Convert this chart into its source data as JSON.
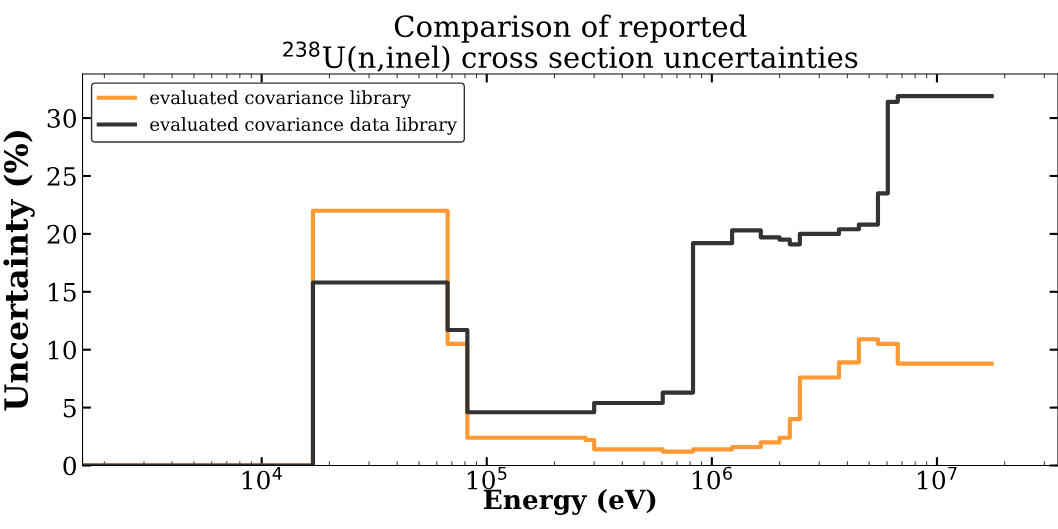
{
  "chart_data": {
    "type": "step",
    "title": "Comparison of reported\n$^{238}$U(n,inel) cross section uncertainties",
    "xlabel": "Energy (eV)",
    "ylabel": "Uncertainty (%)",
    "series": [
      {
        "name": "evaluated covariance library",
        "color": "#ff9933",
        "x": [
          1600,
          16900,
          67000,
          82000,
          275000,
          300000,
          605000,
          825000,
          1230000,
          1650000,
          2000000,
          2220000,
          2460000,
          3670000,
          4500000,
          5470000,
          6700000,
          17500000
        ],
        "values": [
          0,
          22.0,
          10.5,
          2.4,
          2.2,
          1.4,
          1.2,
          1.4,
          1.6,
          2.0,
          2.4,
          4.0,
          7.6,
          8.9,
          10.9,
          10.5,
          8.8,
          8.8
        ]
      },
      {
        "name": "evaluated covariance data library",
        "color": "#333333",
        "x": [
          1600,
          16900,
          67000,
          82000,
          300000,
          605000,
          825000,
          1230000,
          1650000,
          2000000,
          2220000,
          2460000,
          3670000,
          4500000,
          5470000,
          6050000,
          6700000,
          17500000
        ],
        "values": [
          0,
          15.8,
          11.7,
          4.6,
          5.4,
          6.3,
          19.2,
          20.3,
          19.7,
          19.5,
          19.1,
          20.0,
          20.4,
          20.8,
          23.5,
          31.4,
          31.9,
          31.9
        ]
      }
    ],
    "log": "x",
    "xlim": [
      1600,
      34500000
    ],
    "xticks": [
      {
        "value": 10000,
        "label": "10$^{4}$"
      },
      {
        "value": 100000,
        "label": "10$^{5}$"
      },
      {
        "value": 1000000,
        "label": "10$^{6}$"
      },
      {
        "value": 10000000,
        "label": "10$^{7}$"
      }
    ],
    "ylim": [
      0,
      33.8
    ],
    "yticks": [
      0,
      5,
      10,
      15,
      20,
      25,
      30
    ],
    "grid": false,
    "legend": "top left"
  }
}
